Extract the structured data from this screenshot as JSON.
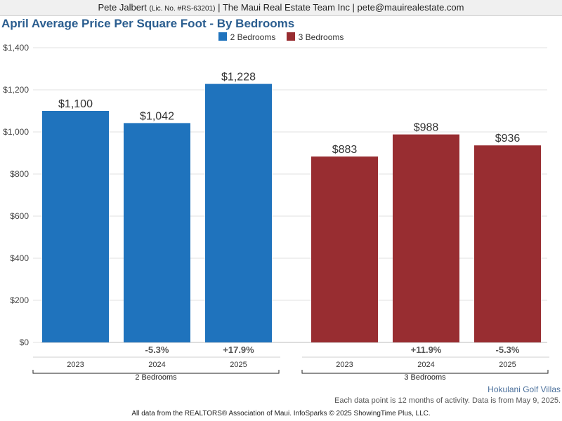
{
  "header": {
    "name": "Pete Jalbert",
    "license": "(Lic. No. #RS-63201)",
    "rest": "| The Maui Real Estate Team Inc | pete@mauirealestate.com"
  },
  "colors": {
    "series_2br": "#1f73bd",
    "series_3br": "#982d31"
  },
  "chart_data": {
    "type": "bar",
    "title": "April Average Price Per Square Foot - By Bedrooms",
    "ylim": [
      0,
      1400
    ],
    "y_ticks": [
      {
        "value": 0,
        "label": "$0"
      },
      {
        "value": 200,
        "label": "$200"
      },
      {
        "value": 400,
        "label": "$400"
      },
      {
        "value": 600,
        "label": "$600"
      },
      {
        "value": 800,
        "label": "$800"
      },
      {
        "value": 1000,
        "label": "$1,000"
      },
      {
        "value": 1200,
        "label": "$1,200"
      },
      {
        "value": 1400,
        "label": "$1,400"
      }
    ],
    "grid": true,
    "legend_position": "top-center",
    "categories": [
      "2023",
      "2024",
      "2025"
    ],
    "series": [
      {
        "name": "2 Bedrooms",
        "group_label": "2 Bedrooms",
        "values": [
          1100,
          1042,
          1228
        ],
        "value_labels": [
          "$1,100",
          "$1,042",
          "$1,228"
        ],
        "changes": [
          "",
          "-5.3%",
          "+17.9%"
        ]
      },
      {
        "name": "3 Bedrooms",
        "group_label": "3 Bedrooms",
        "values": [
          883,
          988,
          936
        ],
        "value_labels": [
          "$883",
          "$988",
          "$936"
        ],
        "changes": [
          "",
          "+11.9%",
          "-5.3%"
        ]
      }
    ]
  },
  "place_name": "Hokulani Golf Villas",
  "note": "Each data point is 12 months of activity. Data is from May 9, 2025.",
  "footer": "All data from the REALTORS® Association of Maui. InfoSparks © 2025 ShowingTime Plus, LLC."
}
